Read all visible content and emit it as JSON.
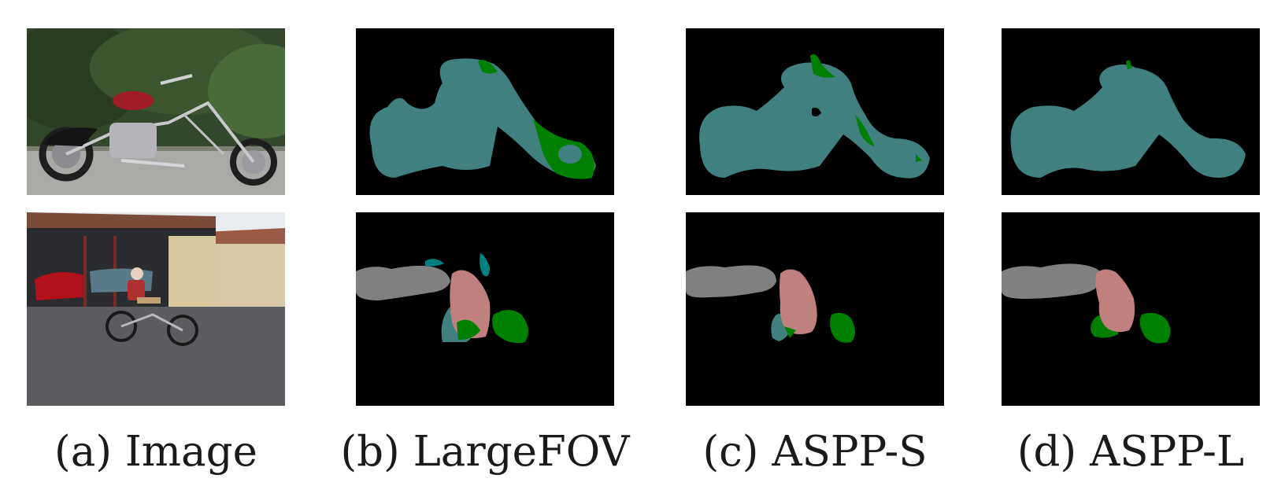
{
  "figure": {
    "captions": {
      "a": "(a) Image",
      "b": "(b) LargeFOV",
      "c": "(c) ASPP-S",
      "d": "(d) ASPP-L"
    },
    "colors": {
      "background": "#000000",
      "motorbike": "#40807f",
      "bicycle": "#008000",
      "person": "#c08080",
      "car": "#808080",
      "bus": "#008080"
    }
  }
}
